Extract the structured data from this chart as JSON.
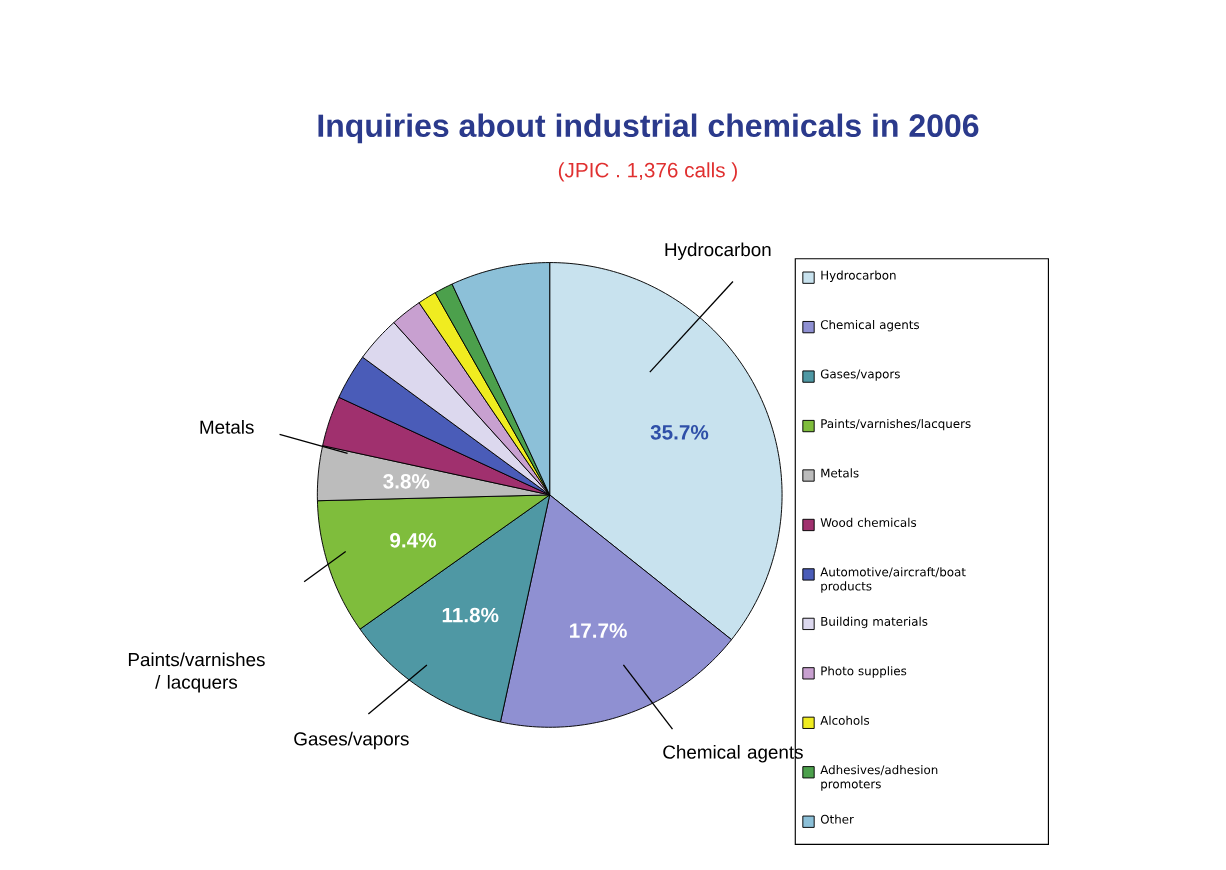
{
  "chart_data": {
    "type": "pie",
    "title": "Inquiries about industrial chemicals in 2006",
    "subtitle": "(JPIC . 1,376 calls )",
    "categories": [
      "Hydrocarbon",
      "Chemical agents",
      "Gases/vapors",
      "Paints/varnishes/lacquers",
      "Metals",
      "Wood chemicals",
      "Automotive/aircraft/boat products",
      "Building materials",
      "Photo supplies",
      "Alcohols",
      "Adhesives/adhesion promoters",
      "Other"
    ],
    "values": [
      35.7,
      17.7,
      11.8,
      9.4,
      3.8,
      3.5,
      3.2,
      3.2,
      2.2,
      1.3,
      1.3,
      6.9
    ],
    "colors": [
      "#c8e2ee",
      "#8f90d2",
      "#4f98a4",
      "#7fbd3c",
      "#bcbcbc",
      "#a0306e",
      "#4a5cb8",
      "#dcd8ee",
      "#c8a0d0",
      "#f0ec20",
      "#4ca04c",
      "#8cc0d8"
    ],
    "value_labels": [
      "35.7%",
      "17.7%",
      "11.8%",
      "9.4%",
      "3.8%",
      null,
      null,
      null,
      null,
      null,
      null,
      null
    ],
    "annotations": [
      "Hydrocarbon",
      "Chemical agents",
      "Gases/vapors",
      "Paints/varnishes / lacquers",
      "Metals"
    ],
    "legend": "right"
  }
}
